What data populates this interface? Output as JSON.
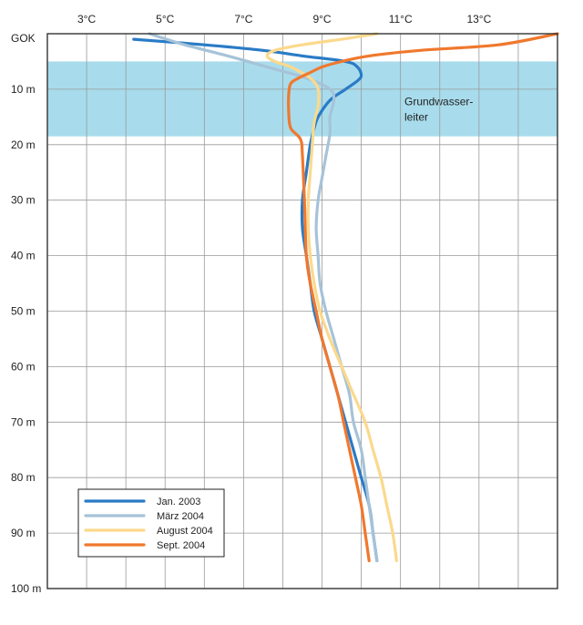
{
  "chart_data": {
    "type": "line",
    "title": "",
    "xlabel": "",
    "ylabel": "",
    "x_axis_position": "top",
    "xlim": [
      2,
      15
    ],
    "ylim": [
      0,
      100
    ],
    "x_ticks": [
      3,
      5,
      7,
      9,
      11,
      13
    ],
    "x_tick_labels": [
      "3°C",
      "5°C",
      "7°C",
      "9°C",
      "11°C",
      "13°C"
    ],
    "y_ticks": [
      0,
      10,
      20,
      30,
      40,
      50,
      60,
      70,
      80,
      90,
      100
    ],
    "y_tick_labels": [
      "GOK",
      "10  m",
      "20  m",
      "30  m",
      "40  m",
      "50  m",
      "60  m",
      "70  m",
      "80  m",
      "90  m",
      "100 m"
    ],
    "grid": true,
    "legend_position": "bottom-left",
    "band": {
      "label_lines": [
        "Grundwasser-",
        "leiter"
      ],
      "depth_from": 5,
      "depth_to": 18.5,
      "color": "#a8dcec"
    },
    "series": [
      {
        "name": "Jan. 2003",
        "color": "#2a7bc6",
        "points": [
          [
            4.2,
            1
          ],
          [
            6.0,
            2
          ],
          [
            7.5,
            3
          ],
          [
            8.5,
            4
          ],
          [
            9.6,
            5
          ],
          [
            9.9,
            6
          ],
          [
            10.0,
            7.5
          ],
          [
            9.9,
            8.5
          ],
          [
            9.6,
            10
          ],
          [
            9.2,
            12
          ],
          [
            8.9,
            15
          ],
          [
            8.8,
            17
          ],
          [
            8.7,
            20
          ],
          [
            8.6,
            25
          ],
          [
            8.5,
            30
          ],
          [
            8.5,
            35
          ],
          [
            8.6,
            40
          ],
          [
            8.7,
            45
          ],
          [
            8.8,
            50
          ],
          [
            9.0,
            55
          ],
          [
            9.2,
            60
          ],
          [
            9.4,
            65
          ],
          [
            9.6,
            70
          ],
          [
            9.8,
            75
          ],
          [
            10.0,
            80
          ],
          [
            10.2,
            85
          ],
          [
            10.3,
            90
          ],
          [
            10.4,
            95
          ]
        ]
      },
      {
        "name": "März 2004",
        "color": "#a6c3d8",
        "points": [
          [
            4.6,
            0
          ],
          [
            5.5,
            2
          ],
          [
            6.6,
            4
          ],
          [
            7.6,
            6
          ],
          [
            8.6,
            8
          ],
          [
            9.2,
            10
          ],
          [
            9.3,
            12
          ],
          [
            9.2,
            15
          ],
          [
            9.2,
            18
          ],
          [
            9.1,
            22
          ],
          [
            9.0,
            26
          ],
          [
            8.9,
            30
          ],
          [
            8.85,
            35
          ],
          [
            8.9,
            40
          ],
          [
            8.95,
            45
          ],
          [
            9.1,
            50
          ],
          [
            9.3,
            55
          ],
          [
            9.5,
            60
          ],
          [
            9.7,
            65
          ],
          [
            9.8,
            70
          ],
          [
            10.0,
            75
          ],
          [
            10.1,
            80
          ],
          [
            10.2,
            85
          ],
          [
            10.3,
            90
          ],
          [
            10.4,
            95
          ]
        ]
      },
      {
        "name": "August 2004",
        "color": "#fbd98c",
        "points": [
          [
            10.4,
            0
          ],
          [
            9.5,
            1
          ],
          [
            8.5,
            2
          ],
          [
            7.8,
            3
          ],
          [
            7.6,
            4
          ],
          [
            7.8,
            5
          ],
          [
            8.2,
            6
          ],
          [
            8.7,
            8
          ],
          [
            8.9,
            10
          ],
          [
            8.9,
            13
          ],
          [
            8.8,
            16
          ],
          [
            8.75,
            20
          ],
          [
            8.7,
            25
          ],
          [
            8.65,
            30
          ],
          [
            8.65,
            35
          ],
          [
            8.7,
            40
          ],
          [
            8.8,
            45
          ],
          [
            8.95,
            50
          ],
          [
            9.2,
            55
          ],
          [
            9.5,
            60
          ],
          [
            9.8,
            65
          ],
          [
            10.1,
            70
          ],
          [
            10.3,
            75
          ],
          [
            10.5,
            80
          ],
          [
            10.65,
            85
          ],
          [
            10.8,
            90
          ],
          [
            10.9,
            95
          ]
        ]
      },
      {
        "name": "Sept. 2004",
        "color": "#f0782e",
        "points": [
          [
            15.0,
            0
          ],
          [
            13.5,
            2
          ],
          [
            11.5,
            3
          ],
          [
            10.2,
            4
          ],
          [
            9.5,
            5
          ],
          [
            9.0,
            6
          ],
          [
            8.7,
            7
          ],
          [
            8.4,
            8
          ],
          [
            8.2,
            9
          ],
          [
            8.15,
            11
          ],
          [
            8.15,
            14
          ],
          [
            8.2,
            17
          ],
          [
            8.45,
            19
          ],
          [
            8.5,
            22
          ],
          [
            8.55,
            30
          ],
          [
            8.6,
            40
          ],
          [
            8.7,
            45
          ],
          [
            8.85,
            50
          ],
          [
            9.0,
            55
          ],
          [
            9.2,
            60
          ],
          [
            9.4,
            65
          ],
          [
            9.55,
            70
          ],
          [
            9.7,
            75
          ],
          [
            9.85,
            80
          ],
          [
            10.0,
            85
          ],
          [
            10.1,
            90
          ],
          [
            10.2,
            95
          ]
        ]
      }
    ]
  },
  "colors": {
    "grid": "#9a9a9a",
    "frame": "#333333",
    "legend_border": "#222222"
  }
}
